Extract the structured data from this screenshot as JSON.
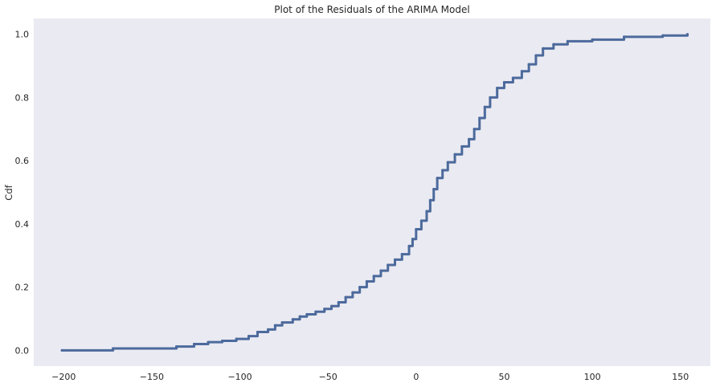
{
  "chart_data": {
    "type": "line",
    "title": "Plot of the Residuals of the ARIMA Model",
    "xlabel": "",
    "ylabel": "Cdf",
    "xlim": [
      -217,
      167
    ],
    "ylim": [
      -0.05,
      1.05
    ],
    "grid": false,
    "x_ticks": [
      -200,
      -150,
      -100,
      -50,
      0,
      50,
      100,
      150
    ],
    "y_ticks": [
      0.0,
      0.2,
      0.4,
      0.6,
      0.8,
      1.0
    ],
    "x_tick_labels": [
      "−200",
      "−150",
      "−100",
      "−50",
      "0",
      "50",
      "100",
      "150"
    ],
    "y_tick_labels": [
      "0.0",
      "0.2",
      "0.4",
      "0.6",
      "0.8",
      "1.0"
    ],
    "colors": {
      "background": "#eaeaf2",
      "line": "#4c6a9c",
      "text": "#262626"
    },
    "series": [
      {
        "step": true,
        "points": [
          [
            -201,
            0.0
          ],
          [
            -172,
            0.006
          ],
          [
            -136,
            0.012
          ],
          [
            -126,
            0.02
          ],
          [
            -118,
            0.026
          ],
          [
            -110,
            0.03
          ],
          [
            -102,
            0.036
          ],
          [
            -95,
            0.045
          ],
          [
            -90,
            0.058
          ],
          [
            -84,
            0.066
          ],
          [
            -80,
            0.079
          ],
          [
            -76,
            0.088
          ],
          [
            -70,
            0.098
          ],
          [
            -66,
            0.107
          ],
          [
            -62,
            0.114
          ],
          [
            -57,
            0.122
          ],
          [
            -52,
            0.131
          ],
          [
            -48,
            0.14
          ],
          [
            -44,
            0.152
          ],
          [
            -40,
            0.168
          ],
          [
            -36,
            0.183
          ],
          [
            -32,
            0.2
          ],
          [
            -28,
            0.218
          ],
          [
            -24,
            0.235
          ],
          [
            -20,
            0.252
          ],
          [
            -16,
            0.27
          ],
          [
            -12,
            0.287
          ],
          [
            -8,
            0.304
          ],
          [
            -4,
            0.33
          ],
          [
            -2,
            0.352
          ],
          [
            0,
            0.383
          ],
          [
            3,
            0.41
          ],
          [
            6,
            0.44
          ],
          [
            8,
            0.475
          ],
          [
            10,
            0.51
          ],
          [
            12,
            0.545
          ],
          [
            15,
            0.57
          ],
          [
            18,
            0.595
          ],
          [
            22,
            0.62
          ],
          [
            26,
            0.645
          ],
          [
            30,
            0.668
          ],
          [
            33,
            0.7
          ],
          [
            36,
            0.735
          ],
          [
            39,
            0.77
          ],
          [
            42,
            0.8
          ],
          [
            46,
            0.83
          ],
          [
            50,
            0.848
          ],
          [
            55,
            0.862
          ],
          [
            60,
            0.883
          ],
          [
            64,
            0.905
          ],
          [
            68,
            0.933
          ],
          [
            72,
            0.955
          ],
          [
            78,
            0.968
          ],
          [
            86,
            0.978
          ],
          [
            100,
            0.983
          ],
          [
            118,
            0.992
          ],
          [
            140,
            0.996
          ],
          [
            154,
            1.0
          ]
        ]
      }
    ]
  }
}
